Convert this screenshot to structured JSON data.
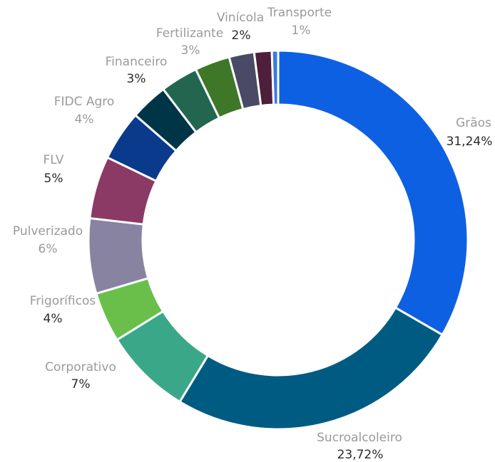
{
  "chart_data": {
    "type": "donut",
    "categories": [
      "Grãos",
      "Sucroalcoleiro",
      "Corporativo",
      "Frigoríficos",
      "Pulverizado",
      "FLV",
      "FIDC Agro",
      "Financeiro",
      "Fertilizante",
      null,
      "Vinícola",
      "Transporte",
      null
    ],
    "values": [
      31.24,
      23.72,
      7,
      4,
      6,
      5,
      4,
      3,
      3,
      2.8,
      2,
      1.4,
      0.5
    ],
    "value_labels": [
      "31,24%",
      "23,72%",
      "7%",
      "4%",
      "6%",
      "5%",
      "4%",
      "3%",
      "3%",
      null,
      "2%",
      "1%",
      null
    ],
    "colors": [
      "#0e60e2",
      "#005b82",
      "#3aa888",
      "#6abf4b",
      "#8883a0",
      "#8b3a66",
      "#0a3a8c",
      "#003547",
      "#236650",
      "#3e7728",
      "#4a4a66",
      "#4d1f3a",
      "#3a7ae0"
    ]
  }
}
